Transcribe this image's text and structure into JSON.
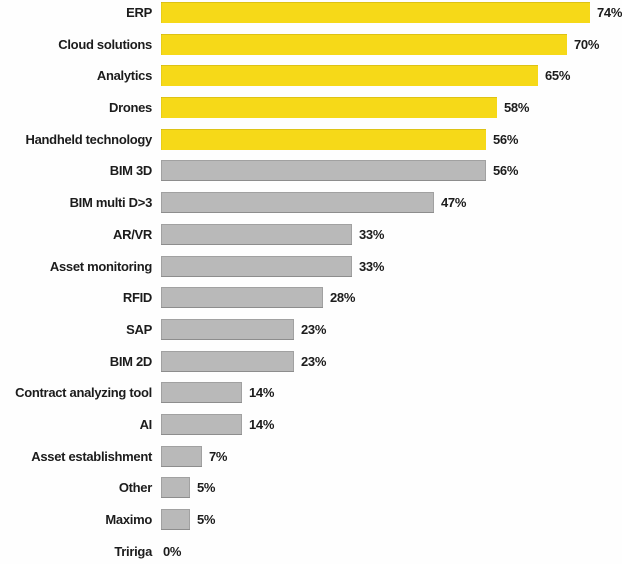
{
  "colors": {
    "highlight_yellow": "#f6d918",
    "bar_gray": "#b9b9b9",
    "text": "#1c1c1c",
    "background": "#fefefe"
  },
  "chart_data": {
    "type": "bar",
    "orientation": "horizontal",
    "title": "",
    "xlabel": "",
    "ylabel": "",
    "grid": false,
    "legend": null,
    "xlim": [
      0,
      100
    ],
    "highlight_count": 5,
    "categories": [
      "ERP",
      "Cloud solutions",
      "Analytics",
      "Drones",
      "Handheld technology",
      "BIM 3D",
      "BIM multi D>3",
      "AR/VR",
      "Asset monitoring",
      "RFID",
      "SAP",
      "BIM 2D",
      "Contract analyzing tool",
      "AI",
      "Asset establishment",
      "Other",
      "Maximo",
      "Tririga"
    ],
    "values": [
      74,
      70,
      65,
      58,
      56,
      56,
      47,
      33,
      33,
      28,
      23,
      23,
      14,
      14,
      7,
      5,
      5,
      0
    ],
    "value_labels": [
      "74%",
      "70%",
      "65%",
      "58%",
      "56%",
      "56%",
      "47%",
      "33%",
      "33%",
      "28%",
      "23%",
      "23%",
      "14%",
      "14%",
      "7%",
      "5%",
      "5%",
      "0%"
    ]
  }
}
